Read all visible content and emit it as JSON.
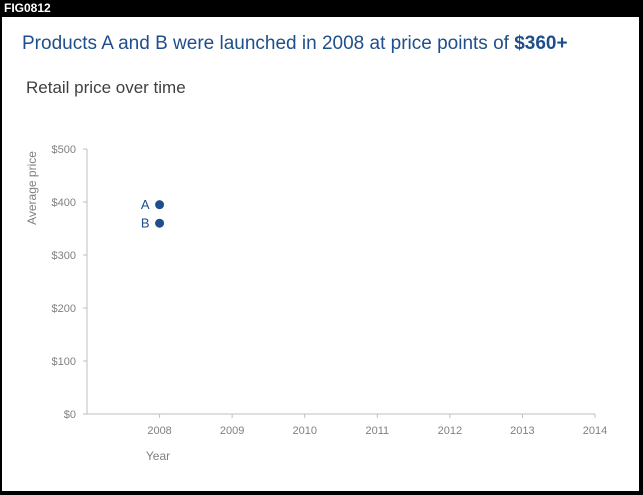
{
  "figure_id": "FIG0812",
  "headline": {
    "text": "Products A and B were launched in 2008 at price points of ",
    "highlight": "$360+"
  },
  "colors": {
    "accent": "#1f4e8c",
    "axis": "#bfbfbf",
    "tick_text": "#808080",
    "subtitle": "#404040"
  },
  "chart_data": {
    "type": "scatter",
    "title": "Retail price over time",
    "xlabel": "Year",
    "ylabel": "Average price",
    "xlim": [
      2007,
      2014
    ],
    "ylim": [
      0,
      500
    ],
    "x_ticks": [
      {
        "value": 2008,
        "label": "2008"
      },
      {
        "value": 2009,
        "label": "2009"
      },
      {
        "value": 2010,
        "label": "2010"
      },
      {
        "value": 2011,
        "label": "2011"
      },
      {
        "value": 2012,
        "label": "2012"
      },
      {
        "value": 2013,
        "label": "2013"
      },
      {
        "value": 2014,
        "label": "2014"
      }
    ],
    "y_ticks": [
      {
        "value": 0,
        "label": "$0"
      },
      {
        "value": 100,
        "label": "$100"
      },
      {
        "value": 200,
        "label": "$200"
      },
      {
        "value": 300,
        "label": "$300"
      },
      {
        "value": 400,
        "label": "$400"
      },
      {
        "value": 500,
        "label": "$500"
      }
    ],
    "grid": false,
    "points": [
      {
        "label": "A",
        "x": 2008,
        "y": 395
      },
      {
        "label": "B",
        "x": 2008,
        "y": 360
      }
    ]
  }
}
